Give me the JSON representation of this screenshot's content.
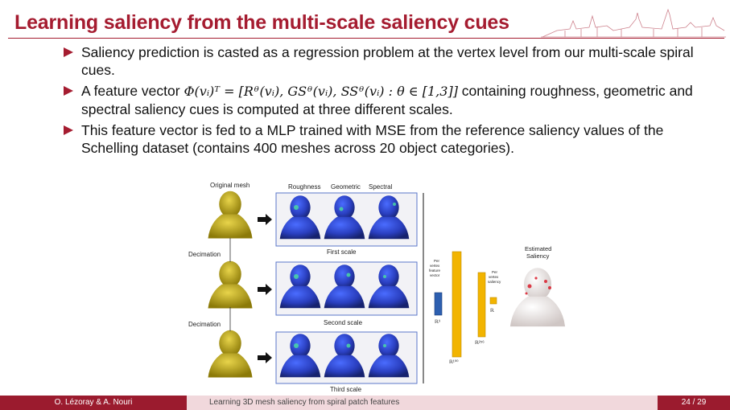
{
  "slide": {
    "title": "Learning saliency from the multi-scale saliency cues",
    "bullets": [
      {
        "pre": "Saliency prediction is casted as a regression problem at the vertex level from our multi-scale spiral cues.",
        "math": "",
        "post": ""
      },
      {
        "pre": "A feature vector ",
        "math": "Φ(vᵢ)ᵀ = [Rᶿ(vᵢ), GSᶿ(vᵢ), SSᶿ(vᵢ) : θ ∈ [1,3]]",
        "post": " containing roughness, geometric and spectral saliency cues is computed at three different scales."
      },
      {
        "pre": "This feature vector is fed to a MLP trained with MSE from the reference saliency values of the Schelling dataset (contains 400 meshes across 20 object categories).",
        "math": "",
        "post": ""
      }
    ]
  },
  "figure": {
    "original_mesh": "Original mesh",
    "decimation_1": "Decimation",
    "decimation_2": "Decimation",
    "col_roughness": "Roughness",
    "col_geometric": "Geometric",
    "col_spectral": "Spectral",
    "first_scale": "First scale",
    "second_scale": "Second scale",
    "third_scale": "Third scale",
    "per_vertex_feature": [
      "Per",
      "vertex",
      "feature",
      "vector"
    ],
    "per_vertex_saliency": [
      "Per",
      "vertex",
      "saliency"
    ],
    "dim_input": "ℝ⁹",
    "dim_hidden1": "ℝ²⁵⁶",
    "dim_hidden2": "ℝ¹⁰⁰",
    "dim_output": "ℝ",
    "estimated": [
      "Estimated",
      "Saliency"
    ]
  },
  "footer": {
    "authors": "O. Lézoray & A. Nouri",
    "talk_title": "Learning 3D mesh saliency from spiral patch features",
    "page": "24 / 29"
  },
  "colors": {
    "accent": "#a51c30",
    "mesh_yellow": "#c9b21a",
    "saliency_blue": "#2a3fc0",
    "mlp_orange": "#f2b400"
  }
}
